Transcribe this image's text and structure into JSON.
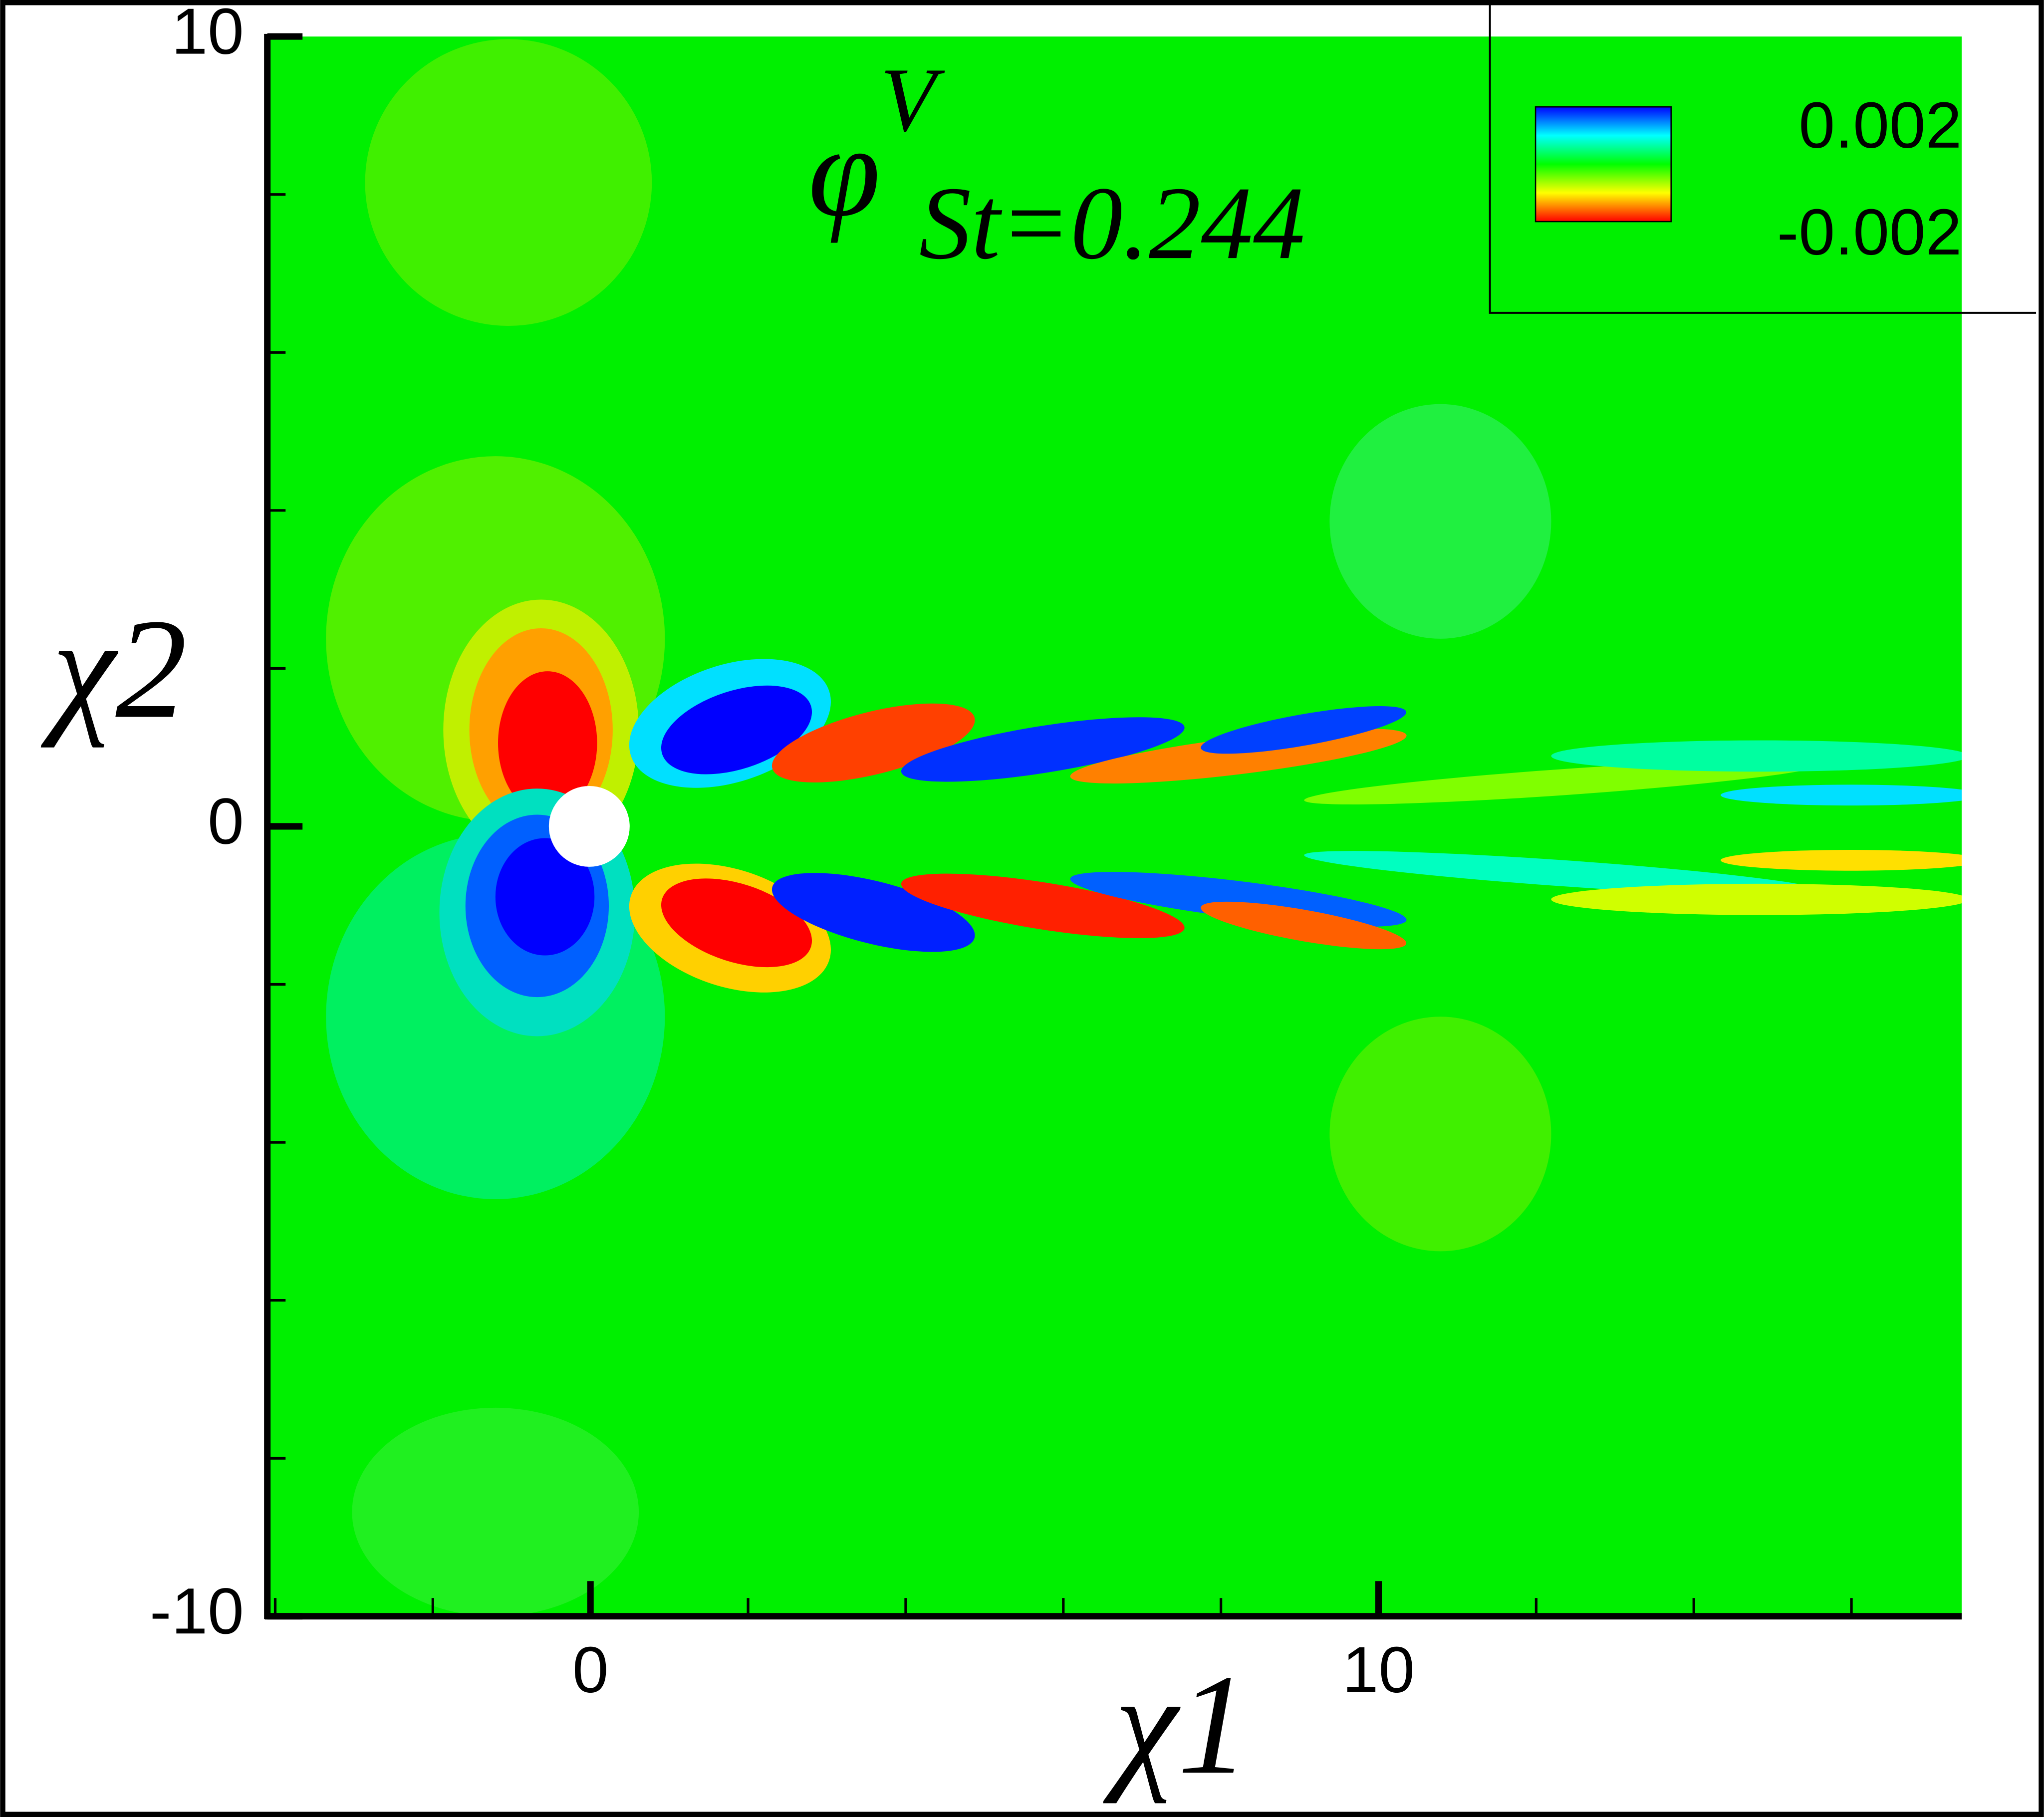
{
  "chart_data": {
    "type": "contour",
    "title": {
      "symbol": "φ",
      "superscript": "V",
      "subscript": "St=0.244"
    },
    "x_label": "χ1",
    "y_label": "χ2",
    "xlim": [
      -4.1,
      17.4
    ],
    "ylim": [
      -10,
      10
    ],
    "xticks": [
      0,
      10
    ],
    "xminorticks": [
      -4,
      -2,
      2,
      4,
      6,
      8,
      12,
      14,
      16
    ],
    "yticks": [
      -10,
      0,
      10
    ],
    "yminorticks": [
      -8,
      -6,
      -4,
      -2,
      2,
      4,
      6,
      8
    ],
    "colorbar": {
      "labels": [
        0.002,
        -0.002
      ],
      "colors": [
        "#0000ff",
        "#0080ff",
        "#00ffff",
        "#00ff80",
        "#00ff00",
        "#80ff00",
        "#ffff00",
        "#ff8000",
        "#ff0000"
      ]
    }
  }
}
